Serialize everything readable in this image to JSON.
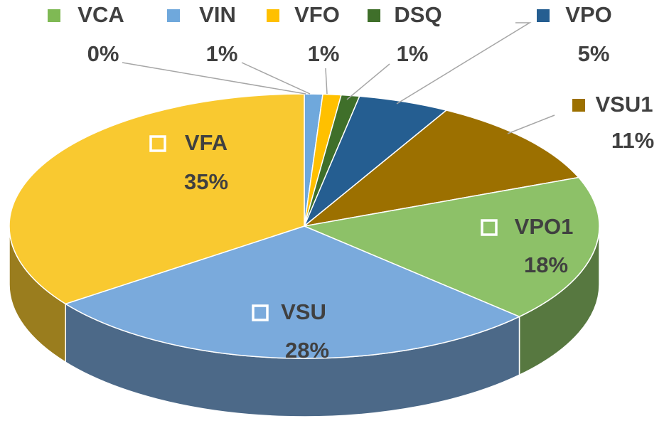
{
  "chart_data": {
    "type": "pie3d",
    "categories": [
      "VCA",
      "VIN",
      "VFO",
      "DSQ",
      "VPO",
      "VSU1",
      "VPO1",
      "VSU",
      "VFA"
    ],
    "values": [
      0,
      1,
      1,
      1,
      5,
      11,
      18,
      28,
      35
    ],
    "value_labels": [
      "0%",
      "1%",
      "1%",
      "1%",
      "5%",
      "11%",
      "18%",
      "28%",
      "35%"
    ],
    "colors": [
      "#7fb954",
      "#6fa8dc",
      "#ffc000",
      "#3f6f2a",
      "#255e91",
      "#9c7000",
      "#8dc168",
      "#7aaadc",
      "#f9c930"
    ]
  }
}
